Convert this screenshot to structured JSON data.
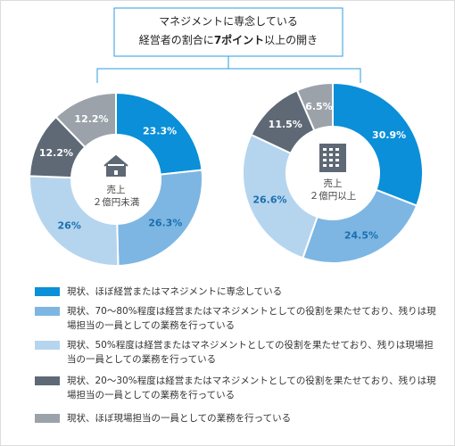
{
  "header": {
    "title_line1": "マネジメントに専念している",
    "title_line2": [
      "経営者の割合に",
      "7ポイント",
      "以上の開き"
    ]
  },
  "chart_data": [
    {
      "type": "pie",
      "center_label": [
        "売上",
        "２億円未満"
      ],
      "categories": [
        "現状、ほぼ経営またはマネジメントに専念している",
        "現状、70～80%程度は経営またはマネジメントとしての役割を果たせており、残りは現場担当の一員としての業務を行っている",
        "現状、50%程度は経営またはマネジメントとしての役割を果たせており、残りは現場担当の一員としての業務を行っている",
        "現状、20～30%程度は経営またはマネジメントとしての役割を果たせており、残りは現場担当の一員としての業務を行っている",
        "現状、ほぼ現場担当の一員としての業務を行っている"
      ],
      "values": [
        23.3,
        26.3,
        26,
        12.2,
        12.2
      ],
      "value_labels": [
        "23.3%",
        "26.3%",
        "26%",
        "12.2%",
        "12.2%"
      ],
      "colors": [
        "#0a8fd8",
        "#7db6e2",
        "#b5d5ef",
        "#5e6975",
        "#9ba2aa"
      ]
    },
    {
      "type": "pie",
      "center_label": [
        "売上",
        "２億円以上"
      ],
      "values": [
        30.9,
        24.5,
        26.6,
        11.5,
        6.5
      ],
      "value_labels": [
        "30.9%",
        "24.5%",
        "26.6%",
        "11.5%",
        "6.5%"
      ],
      "colors": [
        "#0a8fd8",
        "#7db6e2",
        "#b5d5ef",
        "#5e6975",
        "#9ba2aa"
      ]
    }
  ]
}
